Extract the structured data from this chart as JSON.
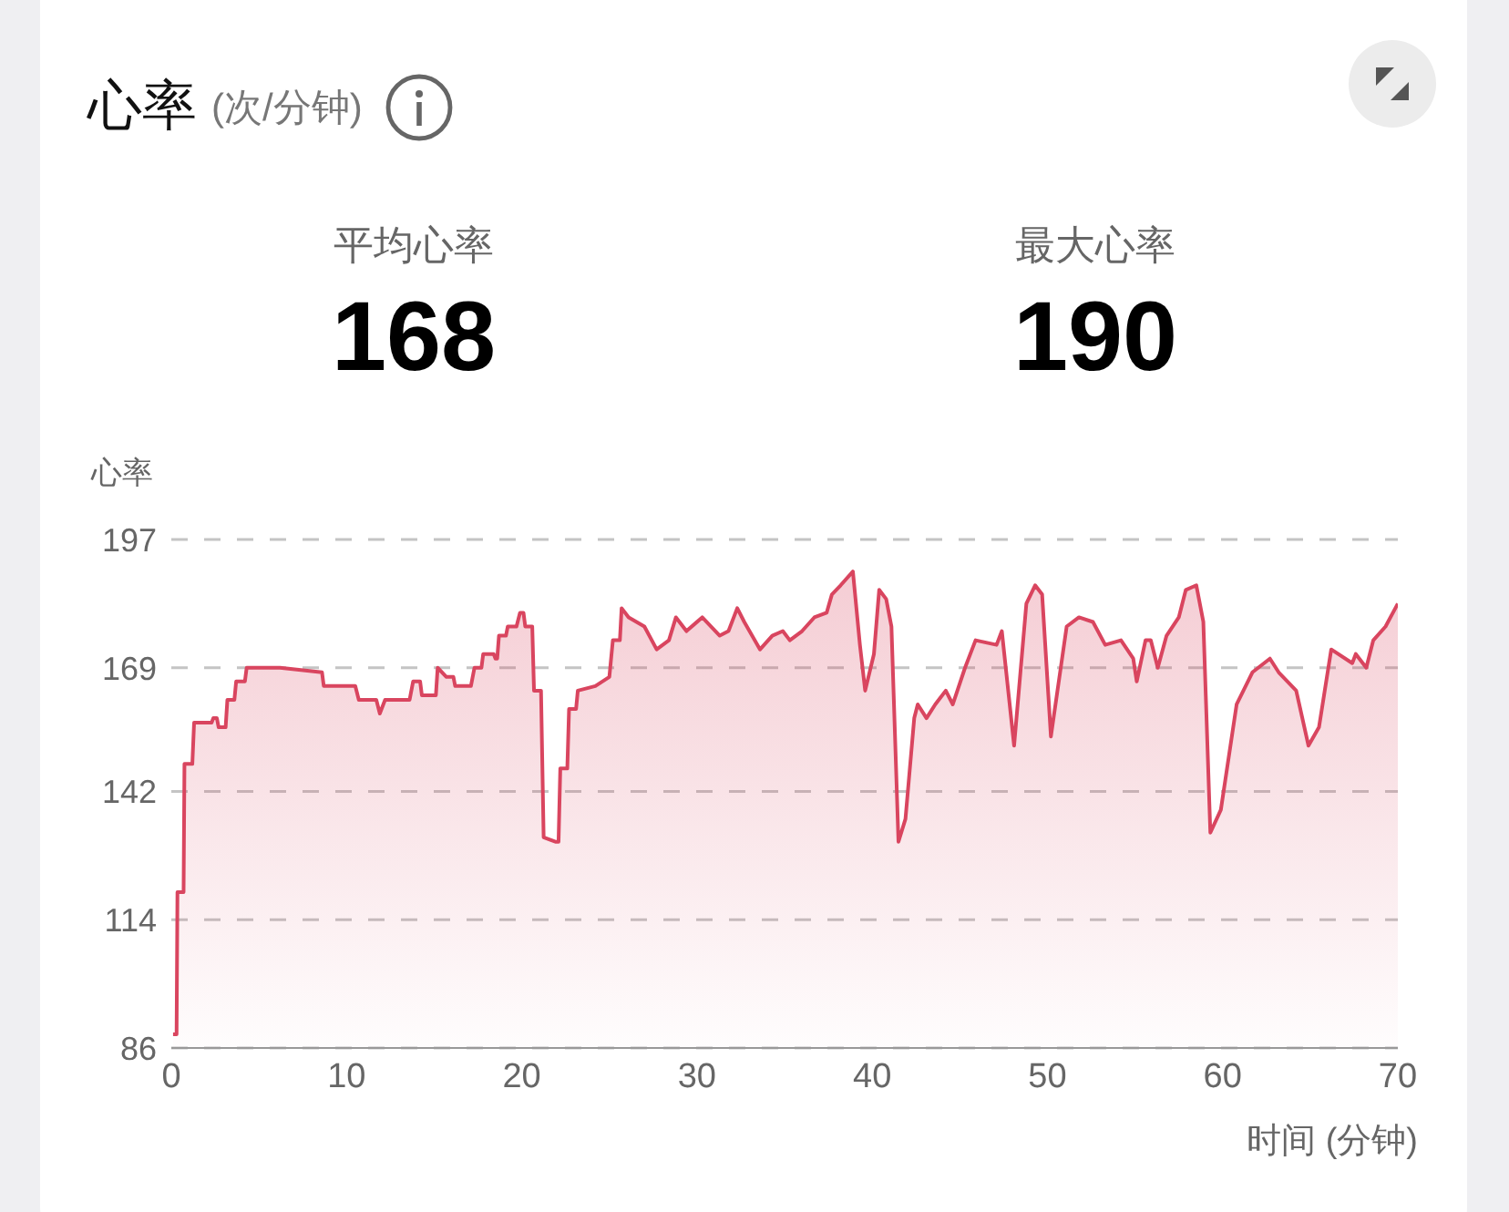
{
  "chart_data": {
    "type": "area",
    "title": "心率",
    "subtitle": "(次/分钟)",
    "annotations": [
      "平均心率",
      "168",
      "最大心率",
      "190"
    ],
    "ylabel": "心率",
    "xlabel": "时间 (分钟)",
    "x": [
      0.1,
      0.3,
      0.35,
      0.7,
      0.75,
      1.2,
      1.3,
      2.3,
      2.4,
      2.6,
      2.7,
      3.1,
      3.2,
      3.6,
      3.7,
      4.2,
      4.3,
      6.2,
      8.6,
      8.7,
      10.5,
      10.7,
      11.7,
      11.9,
      12.2,
      13.6,
      13.8,
      14.2,
      14.3,
      15.1,
      15.2,
      15.7,
      16.1,
      16.2,
      17.1,
      17.3,
      17.7,
      17.8,
      18.4,
      18.5,
      18.6,
      18.7,
      19.1,
      19.2,
      19.7,
      19.9,
      20.1,
      20.2,
      20.6,
      20.7,
      21.1,
      21.25,
      21.95,
      22.1,
      22.2,
      22.6,
      22.7,
      23.1,
      23.2,
      24.2,
      25.0,
      25.2,
      25.6,
      25.7,
      26.1,
      27,
      27.7,
      28.4,
      28.8,
      29.4,
      30.3,
      31.3,
      31.8,
      32.3,
      32.7,
      33.6,
      34.3,
      34.9,
      35.3,
      36,
      36.7,
      37.4,
      37.7,
      38.2,
      38.9,
      39.3,
      39.6,
      40.1,
      40.4,
      40.8,
      41.1,
      41.5,
      41.9,
      42.4,
      42.6,
      43.1,
      43.6,
      44.2,
      44.6,
      45.3,
      45.9,
      47.1,
      47.4,
      48.1,
      48.8,
      49.3,
      49.7,
      50.2,
      51.1,
      51.8,
      52.6,
      53.3,
      54.2,
      54.9,
      55.1,
      55.6,
      55.9,
      56.3,
      56.8,
      57.5,
      57.9,
      58.5,
      58.9,
      59.3,
      59.9,
      60.8,
      61.7,
      62.7,
      63.2,
      64.2,
      64.9,
      65.5,
      66.2,
      67.4,
      67.6,
      68.2,
      68.6,
      69.3,
      70
    ],
    "series": [
      {
        "color": "#d9455f",
        "values": [
          89,
          89,
          120,
          120,
          148,
          148,
          157,
          157,
          158,
          158,
          156,
          156,
          162,
          162,
          166,
          166,
          169,
          169,
          168,
          165,
          165,
          162,
          162,
          159,
          162,
          162,
          166,
          166,
          163,
          163,
          169,
          167,
          167,
          165,
          165,
          169,
          169,
          172,
          172,
          171,
          171,
          176,
          176,
          178,
          178,
          181,
          181,
          178,
          178,
          164,
          164,
          132,
          131,
          131,
          147,
          147,
          160,
          160,
          164,
          165,
          167,
          175,
          175,
          182,
          180,
          178,
          173,
          175,
          180,
          177,
          180,
          176,
          177,
          182,
          179,
          173,
          176,
          177,
          175,
          177,
          180,
          181,
          185,
          187,
          190,
          174,
          164,
          172,
          186,
          184,
          178,
          131,
          136,
          158,
          161,
          158,
          161,
          164,
          161,
          169,
          175,
          174,
          177,
          152,
          183,
          187,
          185,
          154,
          178,
          180,
          179,
          174,
          175,
          171,
          166,
          175,
          175,
          169,
          176,
          180,
          186,
          187,
          179,
          133,
          138,
          161,
          168,
          171,
          168,
          164,
          152,
          156,
          173,
          170,
          172,
          169,
          175,
          178,
          183
        ]
      }
    ],
    "xlim": [
      0,
      70
    ],
    "ylim": [
      86,
      197
    ],
    "xticks": [
      0,
      10,
      20,
      30,
      40,
      50,
      60,
      70
    ],
    "yticks": [
      86,
      114,
      142,
      169,
      197
    ],
    "grid": "y"
  }
}
